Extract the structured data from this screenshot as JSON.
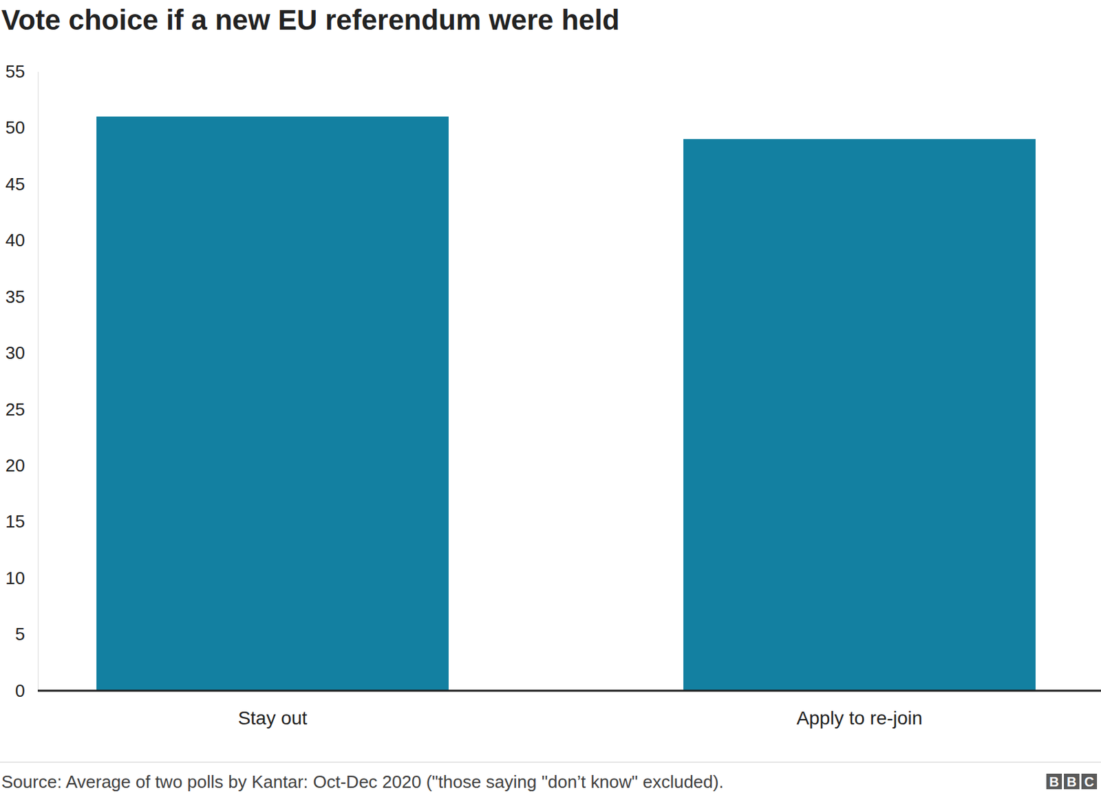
{
  "chart_data": {
    "type": "bar",
    "title": "Vote choice if a new EU referendum were held",
    "categories": [
      "Stay out",
      "Apply to re-join"
    ],
    "values": [
      51,
      49
    ],
    "color": "#1380a1",
    "ylim": [
      0,
      55
    ],
    "yticks": [
      0,
      5,
      10,
      15,
      20,
      25,
      30,
      35,
      40,
      45,
      50,
      55
    ],
    "grid": false,
    "source": "Source: Average of two polls by Kantar: Oct-Dec 2020 (\"those saying \"don’t know\" excluded).",
    "credit": "BBC"
  }
}
